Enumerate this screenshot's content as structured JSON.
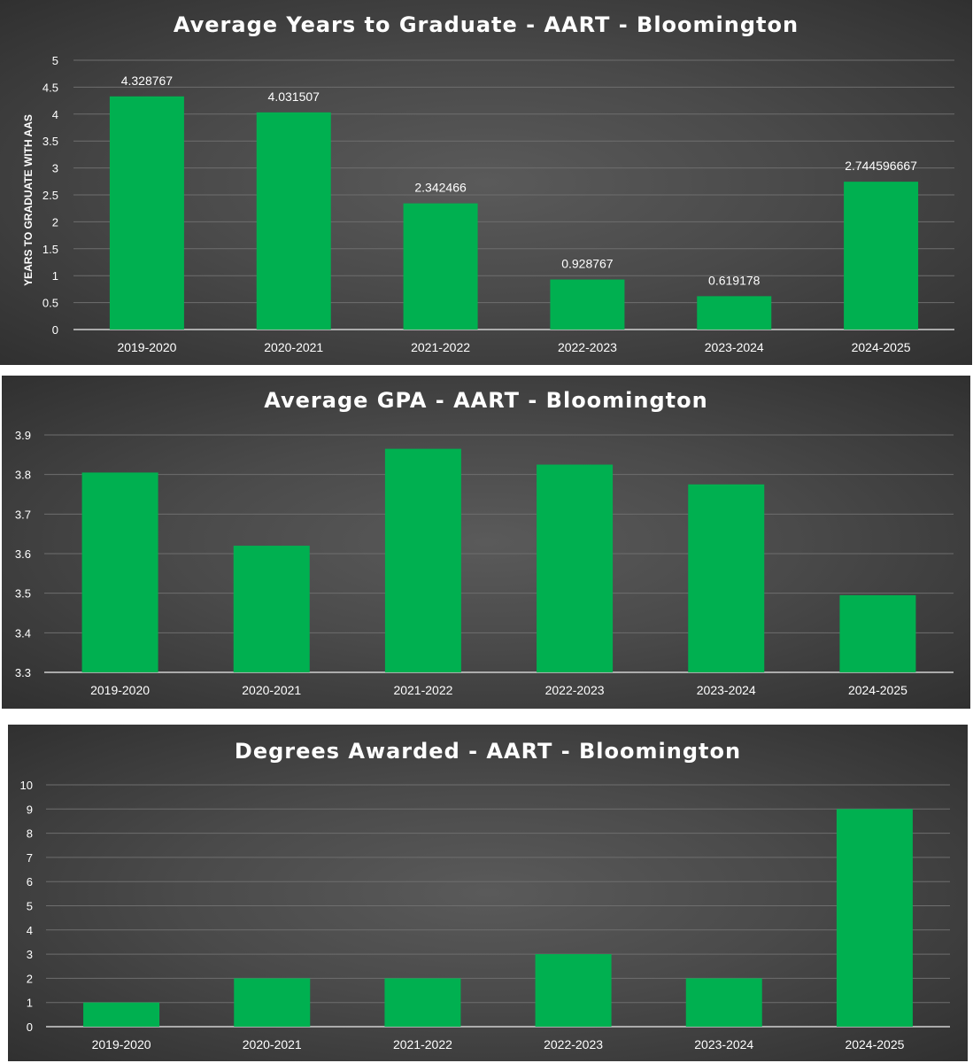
{
  "colors": {
    "bar": "#00b050",
    "grid": "#6e6e6e",
    "axis": "#d0d0d0",
    "text": "#ffffff"
  },
  "chart_data": [
    {
      "type": "bar",
      "title": "Average Years to Graduate - AART - Bloomington",
      "ylabel": "YEARS TO GRADUATE WITH AAS",
      "xlabel": "",
      "categories": [
        "2019-2020",
        "2020-2021",
        "2021-2022",
        "2022-2023",
        "2023-2024",
        "2024-2025"
      ],
      "values": [
        4.328767,
        4.031507,
        2.342466,
        0.928767,
        0.619178,
        2.744596667
      ],
      "data_labels": [
        "4.328767",
        "4.031507",
        "2.342466",
        "0.928767",
        "0.619178",
        "2.744596667"
      ],
      "ylim": [
        0,
        5
      ],
      "yticks": [
        "0",
        "0.5",
        "1",
        "1.5",
        "2",
        "2.5",
        "3",
        "3.5",
        "4",
        "4.5",
        "5"
      ],
      "grid": true
    },
    {
      "type": "bar",
      "title": "Average GPA - AART - Bloomington",
      "ylabel": "",
      "xlabel": "",
      "categories": [
        "2019-2020",
        "2020-2021",
        "2021-2022",
        "2022-2023",
        "2023-2024",
        "2024-2025"
      ],
      "values": [
        3.805,
        3.62,
        3.865,
        3.825,
        3.775,
        3.495
      ],
      "ylim": [
        3.3,
        3.9
      ],
      "yticks": [
        "3.3",
        "3.4",
        "3.5",
        "3.6",
        "3.7",
        "3.8",
        "3.9"
      ],
      "grid": true
    },
    {
      "type": "bar",
      "title": "Degrees Awarded - AART - Bloomington",
      "ylabel": "",
      "xlabel": "",
      "categories": [
        "2019-2020",
        "2020-2021",
        "2021-2022",
        "2022-2023",
        "2023-2024",
        "2024-2025"
      ],
      "values": [
        1,
        2,
        2,
        3,
        2,
        9
      ],
      "ylim": [
        0,
        10
      ],
      "yticks": [
        "0",
        "1",
        "2",
        "3",
        "4",
        "5",
        "6",
        "7",
        "8",
        "9",
        "10"
      ],
      "grid": true
    }
  ]
}
